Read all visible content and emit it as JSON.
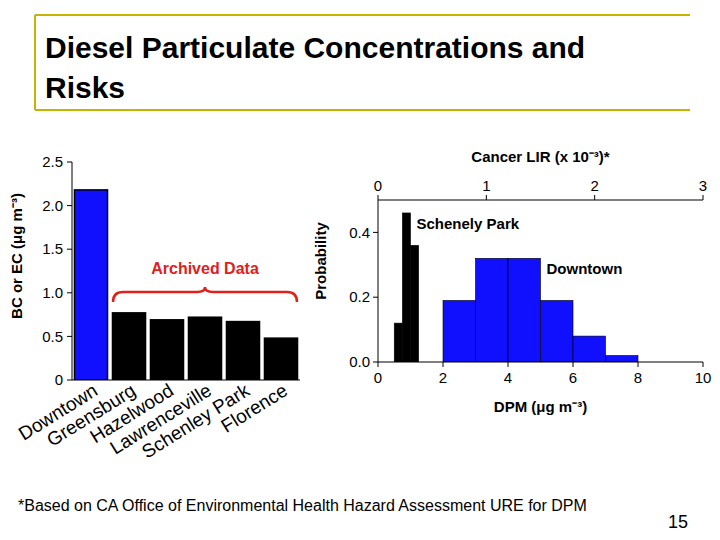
{
  "title": "Diesel Particulate Concentrations and Risks",
  "footnote": "*Based on CA Office of Environmental Health Hazard Assessment URE for DPM",
  "page_number": "15",
  "chart_data": [
    {
      "type": "bar",
      "y_label": "BC or EC (μg m⁻³)",
      "categories": [
        "Downtown",
        "Greensburg",
        "Hazelwood",
        "Lawrenceville",
        "Schenley Park",
        "Florence"
      ],
      "values": [
        2.18,
        0.77,
        0.69,
        0.72,
        0.67,
        0.48
      ],
      "colors": [
        "#1010ff",
        "#000000",
        "#000000",
        "#000000",
        "#000000",
        "#000000"
      ],
      "ylim": [
        0,
        2.5
      ],
      "yticks": [
        0,
        0.5,
        {
          "value": 1,
          "label": "1.0"
        },
        {
          "value": 1.5,
          "label": "1.5"
        },
        {
          "value": 2,
          "label": "2.0"
        },
        {
          "value": 2.5,
          "label": "2.5"
        }
      ],
      "annotation": "Archived Data"
    },
    {
      "type": "histogram",
      "x_label": "DPM (μg m⁻³)",
      "y_label": "Probability",
      "x2_label": "Cancer LIR (x 10⁻³)*",
      "series": [
        {
          "name": "Schenely Park",
          "color": "#000000",
          "bins": [
            0.5,
            0.75,
            1.0,
            1.25
          ],
          "values": [
            0.12,
            0.46,
            0.36
          ]
        },
        {
          "name": "Downtown",
          "color": "#1010ff",
          "bins": [
            2,
            3,
            4,
            5,
            6,
            7,
            8
          ],
          "values": [
            0.19,
            0.32,
            0.32,
            0.19,
            0.08,
            0.02
          ]
        }
      ],
      "xlim": [
        0,
        10
      ],
      "xticks": [
        0,
        2,
        4,
        6,
        8,
        10
      ],
      "ylim": [
        0,
        0.5
      ],
      "yticks": [
        {
          "value": 0,
          "label": "0.0"
        },
        0.2,
        0.4
      ],
      "x2lim": [
        0,
        3
      ],
      "x2ticks": [
        0,
        1,
        2,
        3
      ]
    }
  ]
}
